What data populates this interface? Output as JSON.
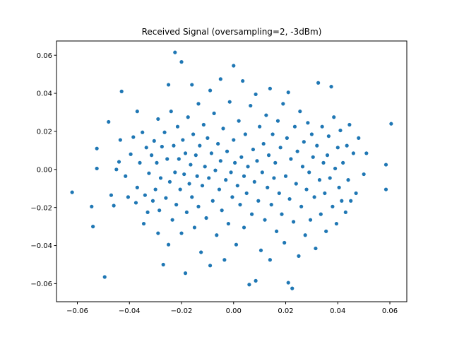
{
  "chart_data": {
    "type": "scatter",
    "title": "Received Signal (oversampling=2, -3dBm)",
    "xlabel": "",
    "ylabel": "",
    "xlim": [
      -0.068,
      0.0665
    ],
    "ylim": [
      -0.0695,
      0.0675
    ],
    "xticks": [
      -0.06,
      -0.04,
      -0.02,
      0.0,
      0.02,
      0.04,
      0.06
    ],
    "xtick_labels": [
      "−0.06",
      "−0.04",
      "−0.02",
      "0.00",
      "0.02",
      "0.04",
      "0.06"
    ],
    "yticks": [
      -0.06,
      -0.04,
      -0.02,
      0.0,
      0.02,
      0.04,
      0.06
    ],
    "ytick_labels": [
      "−0.06",
      "−0.04",
      "−0.02",
      "0.00",
      "0.02",
      "0.04",
      "0.06"
    ],
    "grid": false,
    "legend": false,
    "series_color": "#1f77b4",
    "points": [
      [
        -0.062,
        -0.012
      ],
      [
        -0.0545,
        -0.0195
      ],
      [
        -0.054,
        -0.03
      ],
      [
        -0.0525,
        0.0005
      ],
      [
        -0.0525,
        0.011
      ],
      [
        -0.0495,
        -0.0565
      ],
      [
        -0.048,
        0.025
      ],
      [
        -0.047,
        -0.0135
      ],
      [
        -0.046,
        -0.019
      ],
      [
        -0.045,
        0.0
      ],
      [
        -0.044,
        0.004
      ],
      [
        -0.0435,
        0.0155
      ],
      [
        -0.043,
        0.041
      ],
      [
        -0.0415,
        -0.0035
      ],
      [
        -0.0405,
        -0.0145
      ],
      [
        -0.0395,
        0.008
      ],
      [
        -0.0385,
        0.017
      ],
      [
        -0.0375,
        -0.0175
      ],
      [
        -0.037,
        -0.0095
      ],
      [
        -0.037,
        0.0305
      ],
      [
        -0.036,
        0.0035
      ],
      [
        -0.035,
        0.0195
      ],
      [
        -0.0345,
        -0.0285
      ],
      [
        -0.034,
        -0.0135
      ],
      [
        -0.0335,
        0.0115
      ],
      [
        -0.033,
        -0.0225
      ],
      [
        -0.0325,
        -0.002
      ],
      [
        -0.0315,
        0.0075
      ],
      [
        -0.031,
        -0.0165
      ],
      [
        -0.0305,
        0.015
      ],
      [
        -0.03,
        -0.0105
      ],
      [
        -0.0295,
        0.0035
      ],
      [
        -0.029,
        0.0265
      ],
      [
        -0.029,
        -0.0335
      ],
      [
        -0.0285,
        -0.0215
      ],
      [
        -0.028,
        -0.0045
      ],
      [
        -0.0275,
        0.012
      ],
      [
        -0.027,
        -0.05
      ],
      [
        -0.0265,
        0.0195
      ],
      [
        -0.026,
        -0.015
      ],
      [
        -0.0255,
        0.0055
      ],
      [
        -0.025,
        -0.0395
      ],
      [
        -0.025,
        0.0445
      ],
      [
        -0.0245,
        -0.0065
      ],
      [
        -0.024,
        0.0305
      ],
      [
        -0.0235,
        -0.0265
      ],
      [
        -0.023,
        0.0125
      ],
      [
        -0.0225,
        0.0615
      ],
      [
        -0.0225,
        -0.0015
      ],
      [
        -0.022,
        -0.0185
      ],
      [
        -0.0215,
        0.0225
      ],
      [
        -0.021,
        0.0055
      ],
      [
        -0.0205,
        -0.0105
      ],
      [
        -0.02,
        0.0565
      ],
      [
        -0.02,
        -0.0335
      ],
      [
        -0.0195,
        0.0155
      ],
      [
        -0.019,
        -0.0025
      ],
      [
        -0.0185,
        -0.0545
      ],
      [
        -0.0185,
        0.0085
      ],
      [
        -0.018,
        -0.0225
      ],
      [
        -0.0175,
        0.0275
      ],
      [
        -0.017,
        -0.0075
      ],
      [
        -0.0165,
        0.0025
      ],
      [
        -0.016,
        0.0445
      ],
      [
        -0.016,
        -0.0145
      ],
      [
        -0.0155,
        0.0185
      ],
      [
        -0.015,
        -0.0305
      ],
      [
        -0.0145,
        0.0075
      ],
      [
        -0.014,
        -0.0035
      ],
      [
        -0.0135,
        0.0345
      ],
      [
        -0.0135,
        -0.0195
      ],
      [
        -0.013,
        0.0125
      ],
      [
        -0.0125,
        -0.0435
      ],
      [
        -0.012,
        -0.0085
      ],
      [
        -0.0115,
        0.0235
      ],
      [
        -0.011,
        0.0015
      ],
      [
        -0.0105,
        -0.0255
      ],
      [
        -0.01,
        0.0165
      ],
      [
        -0.0095,
        -0.0045
      ],
      [
        -0.009,
        -0.0505
      ],
      [
        -0.009,
        0.0415
      ],
      [
        -0.0085,
        0.0085
      ],
      [
        -0.008,
        -0.0165
      ],
      [
        -0.0075,
        0.0295
      ],
      [
        -0.007,
        -0.0005
      ],
      [
        -0.0065,
        -0.0345
      ],
      [
        -0.006,
        0.0135
      ],
      [
        -0.0055,
        -0.0105
      ],
      [
        -0.005,
        0.0045
      ],
      [
        -0.005,
        0.0475
      ],
      [
        -0.0045,
        -0.0215
      ],
      [
        -0.004,
        0.0215
      ],
      [
        -0.0035,
        -0.0475
      ],
      [
        -0.003,
        -0.0055
      ],
      [
        -0.0025,
        0.0095
      ],
      [
        -0.002,
        -0.0285
      ],
      [
        -0.0015,
        0.0355
      ],
      [
        -0.001,
        -0.0015
      ],
      [
        -0.0005,
        -0.0145
      ],
      [
        0.0,
        0.0155
      ],
      [
        0.0,
        0.0545
      ],
      [
        0.0005,
        0.0035
      ],
      [
        0.001,
        -0.0395
      ],
      [
        0.0015,
        -0.0085
      ],
      [
        0.002,
        0.0255
      ],
      [
        0.0025,
        -0.0185
      ],
      [
        0.003,
        0.0065
      ],
      [
        0.0035,
        0.0465
      ],
      [
        0.004,
        -0.0035
      ],
      [
        0.004,
        -0.0305
      ],
      [
        0.0045,
        0.0185
      ],
      [
        0.005,
        -0.0125
      ],
      [
        0.0055,
        0.0015
      ],
      [
        0.006,
        -0.0605
      ],
      [
        0.0065,
        0.0335
      ],
      [
        0.007,
        -0.0235
      ],
      [
        0.0075,
        0.0105
      ],
      [
        0.008,
        -0.0065
      ],
      [
        0.0085,
        -0.0585
      ],
      [
        0.0085,
        0.0395
      ],
      [
        0.009,
        0.0045
      ],
      [
        0.0095,
        -0.0165
      ],
      [
        0.01,
        0.0225
      ],
      [
        0.0105,
        -0.0425
      ],
      [
        0.011,
        -0.0015
      ],
      [
        0.0115,
        0.0135
      ],
      [
        0.012,
        -0.0265
      ],
      [
        0.0125,
        0.0285
      ],
      [
        0.013,
        -0.0095
      ],
      [
        0.0135,
        0.0075
      ],
      [
        0.014,
        -0.0475
      ],
      [
        0.014,
        0.0425
      ],
      [
        0.0145,
        -0.0185
      ],
      [
        0.015,
        0.0185
      ],
      [
        0.0155,
        -0.0045
      ],
      [
        0.016,
        0.0035
      ],
      [
        0.0165,
        -0.0325
      ],
      [
        0.017,
        0.0255
      ],
      [
        0.0175,
        -0.0125
      ],
      [
        0.018,
        0.0115
      ],
      [
        0.0185,
        -0.0235
      ],
      [
        0.019,
        0.0345
      ],
      [
        0.0195,
        -0.0385
      ],
      [
        0.02,
        -0.0035
      ],
      [
        0.0205,
        0.0165
      ],
      [
        0.021,
        -0.0595
      ],
      [
        0.021,
        0.0405
      ],
      [
        0.0215,
        -0.0155
      ],
      [
        0.022,
        0.0055
      ],
      [
        0.0225,
        -0.0625
      ],
      [
        0.023,
        -0.0275
      ],
      [
        0.0235,
        0.0225
      ],
      [
        0.024,
        -0.0075
      ],
      [
        0.0245,
        0.0095
      ],
      [
        0.025,
        -0.0455
      ],
      [
        0.0255,
        0.0305
      ],
      [
        0.026,
        -0.0195
      ],
      [
        0.0265,
        0.0015
      ],
      [
        0.027,
        0.0145
      ],
      [
        0.0275,
        -0.0345
      ],
      [
        0.028,
        -0.0105
      ],
      [
        0.0285,
        0.0245
      ],
      [
        0.029,
        -0.0015
      ],
      [
        0.0295,
        -0.0265
      ],
      [
        0.03,
        0.0185
      ],
      [
        0.0305,
        0.0065
      ],
      [
        0.031,
        -0.0145
      ],
      [
        0.0315,
        -0.0415
      ],
      [
        0.032,
        0.0125
      ],
      [
        0.0325,
        0.0455
      ],
      [
        0.033,
        -0.0055
      ],
      [
        0.0335,
        -0.0235
      ],
      [
        0.034,
        0.0225
      ],
      [
        0.0345,
        0.0035
      ],
      [
        0.035,
        -0.0125
      ],
      [
        0.0355,
        -0.0325
      ],
      [
        0.036,
        0.0075
      ],
      [
        0.0365,
        0.0175
      ],
      [
        0.037,
        -0.0045
      ],
      [
        0.0375,
        0.0435
      ],
      [
        0.038,
        -0.0195
      ],
      [
        0.0385,
        0.0275
      ],
      [
        0.039,
        0.0005
      ],
      [
        0.0395,
        -0.0285
      ],
      [
        0.04,
        0.0115
      ],
      [
        0.0405,
        -0.0095
      ],
      [
        0.041,
        0.0205
      ],
      [
        0.0415,
        -0.0165
      ],
      [
        0.042,
        0.0035
      ],
      [
        0.043,
        -0.0225
      ],
      [
        0.0435,
        0.0125
      ],
      [
        0.044,
        -0.0055
      ],
      [
        0.0445,
        0.0235
      ],
      [
        0.045,
        -0.0165
      ],
      [
        0.046,
        0.0085
      ],
      [
        0.047,
        -0.0125
      ],
      [
        0.048,
        0.0165
      ],
      [
        0.051,
        0.0085
      ],
      [
        0.0585,
        0.0025
      ],
      [
        0.0585,
        -0.0105
      ],
      [
        0.0605,
        0.024
      ],
      [
        0.05,
        -0.0025
      ]
    ]
  }
}
